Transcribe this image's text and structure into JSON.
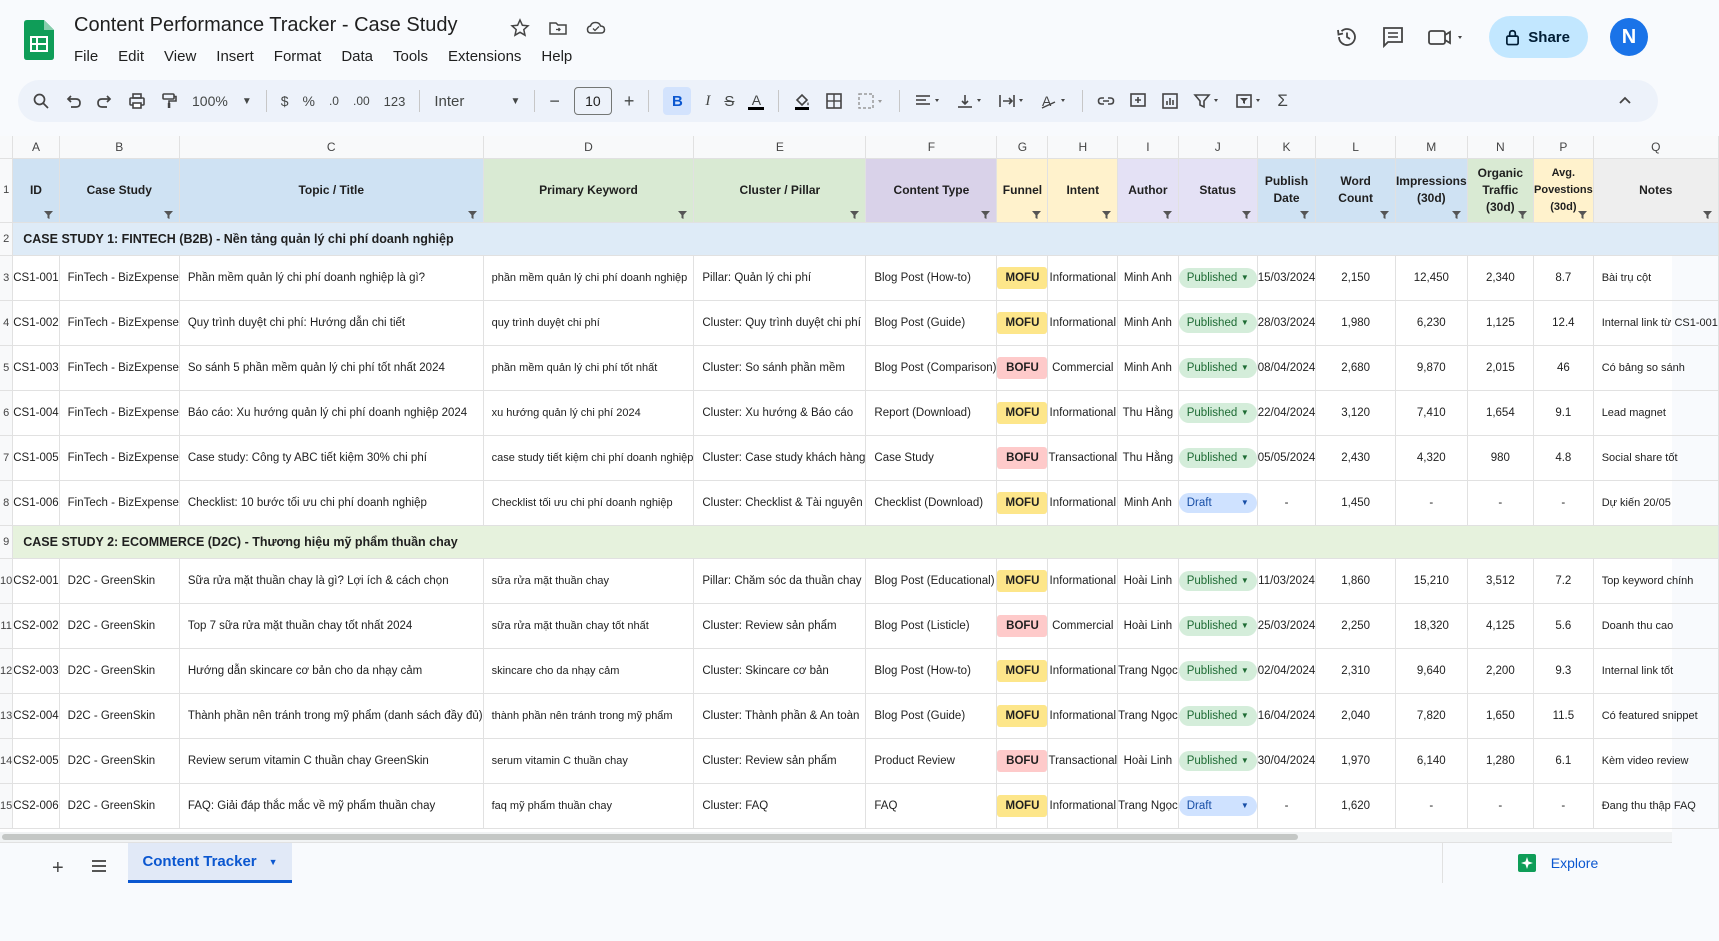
{
  "app": {
    "doc_title": "Content Performance Tracker - Case Study",
    "menu": [
      "File",
      "Edit",
      "View",
      "Insert",
      "Format",
      "Data",
      "Tools",
      "Extensions",
      "Help"
    ],
    "share_label": "Share",
    "avatar_initial": "N"
  },
  "toolbar": {
    "zoom": "100%",
    "currency": "$",
    "percent": "%",
    "dec_decrease": ".0",
    "dec_increase": ".00",
    "number_format": "123",
    "font": "Inter",
    "font_size": "10",
    "bold": "B",
    "italic": "I"
  },
  "columns": [
    "A",
    "B",
    "C",
    "D",
    "E",
    "F",
    "G",
    "H",
    "I",
    "J",
    "K",
    "L",
    "M",
    "N",
    "P",
    "Q"
  ],
  "headers": [
    "ID",
    "Case Study",
    "Topic / Title",
    "Primary Keyword",
    "Cluster / Pillar",
    "Content Type",
    "Funnel",
    "Intent",
    "Author",
    "Status",
    "Publish Date",
    "Word Count",
    "Impressions (30d)",
    "Organic Traffic (30d)",
    "Avg. Povestions (30d)",
    "Notes"
  ],
  "sections": {
    "s1": "CASE STUDY 1: FINTECH (B2B) - Nền tảng quản lý chi phí doanh nghiệp",
    "s2": "CASE STUDY 2: ECOMMERCE (D2C) - Thương hiệu mỹ phẩm thuần chay"
  },
  "rows1": [
    {
      "n": "3",
      "id": "CS1-001",
      "cs": "FinTech - BizExpense",
      "topic": "Phần mềm quản lý chi phí doanh nghiệp là gì?",
      "kw": "phần mềm quản lý chi phí doanh nghiệp",
      "cluster": "Pillar: Quản lý chi phí",
      "type": "Blog Post (How-to)",
      "funnel": "MOFU",
      "intent": "Informational",
      "author": "Minh Anh",
      "status": "Published",
      "date": "15/03/2024",
      "wc": "2,150",
      "imp": "12,450",
      "traffic": "2,340",
      "pos": "8.7",
      "notes": "Bài trụ cột"
    },
    {
      "n": "4",
      "id": "CS1-002",
      "cs": "FinTech - BizExpense",
      "topic": "Quy trình duyệt chi phí: Hướng dẫn chi tiết",
      "kw": "quy trình duyệt chi phí",
      "cluster": "Cluster: Quy trình duyệt chi phí",
      "type": "Blog Post (Guide)",
      "funnel": "MOFU",
      "intent": "Informational",
      "author": "Minh Anh",
      "status": "Published",
      "date": "28/03/2024",
      "wc": "1,980",
      "imp": "6,230",
      "traffic": "1,125",
      "pos": "12.4",
      "notes": "Internal link từ CS1-001"
    },
    {
      "n": "5",
      "id": "CS1-003",
      "cs": "FinTech - BizExpense",
      "topic": "So sánh 5 phần mềm quản lý chi phí tốt nhất 2024",
      "kw": "phần mềm quản lý chi phí tốt nhất",
      "cluster": "Cluster: So sánh phần mềm",
      "type": "Blog Post (Comparison)",
      "funnel": "BOFU",
      "intent": "Commercial",
      "author": "Minh Anh",
      "status": "Published",
      "date": "08/04/2024",
      "wc": "2,680",
      "imp": "9,870",
      "traffic": "2,015",
      "pos": "46",
      "notes": "Có bảng so sánh"
    },
    {
      "n": "6",
      "id": "CS1-004",
      "cs": "FinTech - BizExpense",
      "topic": "Báo cáo: Xu hướng quản lý chi phí doanh nghiệp 2024",
      "kw": "xu hướng quản lý chi phí 2024",
      "cluster": "Cluster: Xu hướng & Báo cáo",
      "type": "Report (Download)",
      "funnel": "MOFU",
      "intent": "Informational",
      "author": "Thu Hằng",
      "status": "Published",
      "date": "22/04/2024",
      "wc": "3,120",
      "imp": "7,410",
      "traffic": "1,654",
      "pos": "9.1",
      "notes": "Lead magnet"
    },
    {
      "n": "7",
      "id": "CS1-005",
      "cs": "FinTech - BizExpense",
      "topic": "Case study: Công ty ABC tiết kiệm 30% chi phí",
      "kw": "case study tiết kiệm chi phí doanh nghiệp",
      "cluster": "Cluster: Case study khách hàng",
      "type": "Case Study",
      "funnel": "BOFU",
      "intent": "Transactional",
      "author": "Thu Hằng",
      "status": "Published",
      "date": "05/05/2024",
      "wc": "2,430",
      "imp": "4,320",
      "traffic": "980",
      "pos": "4.8",
      "notes": "Social share tốt"
    },
    {
      "n": "8",
      "id": "CS1-006",
      "cs": "FinTech - BizExpense",
      "topic": "Checklist: 10 bước tối ưu chi phí doanh nghiệp",
      "kw": "Checklist tối ưu chi phí doanh nghiệp",
      "cluster": "Cluster: Checklist & Tài nguyên",
      "type": "Checklist (Download)",
      "funnel": "MOFU",
      "intent": "Informational",
      "author": "Minh Anh",
      "status": "Draft",
      "date": "-",
      "wc": "1,450",
      "imp": "-",
      "traffic": "-",
      "pos": "-",
      "notes": "Dự kiến 20/05"
    }
  ],
  "rows2": [
    {
      "n": "10",
      "id": "CS2-001",
      "cs": "D2C - GreenSkin",
      "topic": "Sữa rửa mặt thuần chay là gì? Lợi ích & cách chọn",
      "kw": "sữa rửa mặt thuần chay",
      "cluster": "Pillar: Chăm sóc da thuần chay",
      "type": "Blog Post (Educational)",
      "funnel": "MOFU",
      "intent": "Informational",
      "author": "Hoài Linh",
      "status": "Published",
      "date": "11/03/2024",
      "wc": "1,860",
      "imp": "15,210",
      "traffic": "3,512",
      "pos": "7.2",
      "notes": "Top keyword chính"
    },
    {
      "n": "11",
      "id": "CS2-002",
      "cs": "D2C - GreenSkin",
      "topic": "Top 7 sữa rửa mặt thuần chay tốt nhất 2024",
      "kw": "sữa rửa mặt thuần chay tốt nhất",
      "cluster": "Cluster: Review sản phẩm",
      "type": "Blog Post (Listicle)",
      "funnel": "BOFU",
      "intent": "Commercial",
      "author": "Hoài Linh",
      "status": "Published",
      "date": "25/03/2024",
      "wc": "2,250",
      "imp": "18,320",
      "traffic": "4,125",
      "pos": "5.6",
      "notes": "Doanh thu cao"
    },
    {
      "n": "12",
      "id": "CS2-003",
      "cs": "D2C - GreenSkin",
      "topic": "Hướng dẫn skincare cơ bản cho da nhạy cảm",
      "kw": "skincare cho da nhạy cảm",
      "cluster": "Cluster: Skincare cơ bản",
      "type": "Blog Post (How-to)",
      "funnel": "MOFU",
      "intent": "Informational",
      "author": "Trang Ngọc",
      "status": "Published",
      "date": "02/04/2024",
      "wc": "2,310",
      "imp": "9,640",
      "traffic": "2,200",
      "pos": "9.3",
      "notes": "Internal link tốt"
    },
    {
      "n": "13",
      "id": "CS2-004",
      "cs": "D2C - GreenSkin",
      "topic": "Thành phần nên tránh trong mỹ phẩm (danh sách đầy đủ)",
      "kw": "thành phần nên tránh trong mỹ phẩm",
      "cluster": "Cluster: Thành phần & An toàn",
      "type": "Blog Post (Guide)",
      "funnel": "MOFU",
      "intent": "Informational",
      "author": "Trang Ngọc",
      "status": "Published",
      "date": "16/04/2024",
      "wc": "2,040",
      "imp": "7,820",
      "traffic": "1,650",
      "pos": "11.5",
      "notes": "Có featured snippet"
    },
    {
      "n": "14",
      "id": "CS2-005",
      "cs": "D2C - GreenSkin",
      "topic": "Review serum vitamin C thuần chay GreenSkin",
      "kw": "serum vitamin C thuần chay",
      "cluster": "Cluster: Review sản phẩm",
      "type": "Product Review",
      "funnel": "BOFU",
      "intent": "Transactional",
      "author": "Hoài Linh",
      "status": "Published",
      "date": "30/04/2024",
      "wc": "1,970",
      "imp": "6,140",
      "traffic": "1,280",
      "pos": "6.1",
      "notes": "Kèm video review"
    },
    {
      "n": "15",
      "id": "CS2-006",
      "cs": "D2C - GreenSkin",
      "topic": "FAQ: Giải đáp thắc mắc về mỹ phẩm thuần chay",
      "kw": "faq mỹ phẩm thuần chay",
      "cluster": "Cluster: FAQ",
      "type": "FAQ",
      "funnel": "MOFU",
      "intent": "Informational",
      "author": "Trang Ngọc",
      "status": "Draft",
      "date": "-",
      "wc": "1,620",
      "imp": "-",
      "traffic": "-",
      "pos": "-",
      "notes": "Đang thu thập FAQ"
    }
  ],
  "bottom": {
    "sheet_tab": "Content Tracker",
    "explore": "Explore"
  },
  "colors": {
    "mofu": "#fde68a",
    "bofu": "#fecaca",
    "published": "#d4edda",
    "draft": "#cfe2ff",
    "accent": "#0b57d0"
  }
}
